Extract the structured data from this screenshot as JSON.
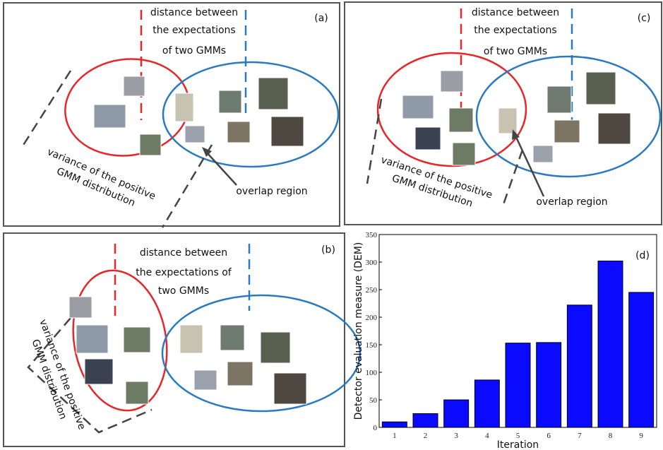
{
  "panels": [
    {
      "label": "(a)",
      "distance_text": [
        "distance between",
        "the expectations",
        "of two GMMs"
      ],
      "variance_text": [
        "variance of the positive",
        "GMM distribution"
      ],
      "overlap_text": "overlap region"
    },
    {
      "label": "(c)",
      "distance_text": [
        "distance between",
        "the expectations",
        "of two GMMs"
      ],
      "variance_text": [
        "variance of the positive",
        "GMM distribution"
      ],
      "overlap_text": "overlap region"
    },
    {
      "label": "(b)",
      "distance_text": [
        "distance between",
        "the expectations of",
        "two GMMs"
      ],
      "variance_text": [
        "variance of the positive",
        "GMM distribution"
      ]
    },
    {
      "label": "(d)"
    }
  ],
  "chart_data": {
    "type": "bar",
    "x_label": "Iteration",
    "y_label": "Detector evaluation measure (DEM)",
    "categories": [
      "1",
      "2",
      "3",
      "4",
      "5",
      "6",
      "7",
      "8",
      "9"
    ],
    "values": [
      10,
      25,
      50,
      86,
      153,
      154,
      222,
      302,
      245
    ],
    "color": "#0a0aff",
    "ylim": [
      0,
      350
    ],
    "yticks": [
      0,
      50,
      100,
      150,
      200,
      250,
      300,
      350
    ]
  }
}
